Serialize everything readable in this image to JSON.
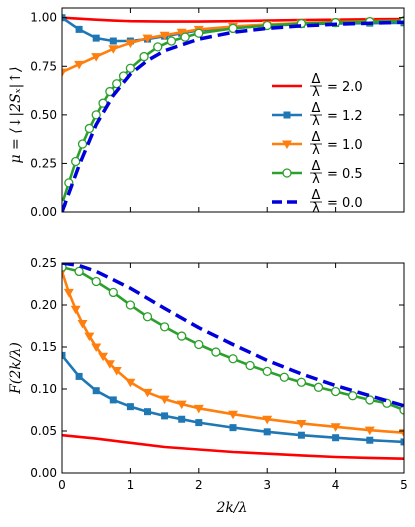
{
  "chart_data": [
    {
      "type": "line",
      "title": "",
      "ylabel": "μ = ⟨↓|2Sₓ|↑⟩",
      "xlabel": "",
      "xlim": [
        0,
        5
      ],
      "ylim": [
        0,
        1.05
      ],
      "x_ticks": [
        0,
        1,
        2,
        3,
        4,
        5
      ],
      "y_ticks": [
        0.0,
        0.25,
        0.5,
        0.75,
        1.0
      ],
      "y_tick_labels": [
        "0.00",
        "0.25",
        "0.50",
        "0.75",
        "1.00"
      ],
      "show_x_tick_labels": false,
      "grid": false,
      "legend": "center-right",
      "series": [
        {
          "name": "Δ/λ = 2.0",
          "legend_text": "= 2.0",
          "color": "#ff0000",
          "style": "solid",
          "marker": "none",
          "x": [
            0,
            0.25,
            0.5,
            0.75,
            1,
            1.5,
            2,
            2.5,
            3,
            3.5,
            4,
            4.5,
            5
          ],
          "values": [
            1.0,
            0.995,
            0.99,
            0.985,
            0.982,
            0.98,
            0.98,
            0.982,
            0.985,
            0.988,
            0.99,
            0.992,
            0.993
          ]
        },
        {
          "name": "Δ/λ = 1.2",
          "legend_text": "= 1.2",
          "color": "#1f77b4",
          "style": "solid",
          "marker": "square",
          "x": [
            0,
            0.25,
            0.5,
            0.75,
            1,
            1.25,
            1.5,
            1.75,
            2,
            2.5,
            3,
            3.5,
            4,
            4.5,
            5
          ],
          "values": [
            1.0,
            0.94,
            0.895,
            0.88,
            0.88,
            0.89,
            0.905,
            0.92,
            0.935,
            0.95,
            0.96,
            0.966,
            0.97,
            0.972,
            0.974
          ]
        },
        {
          "name": "Δ/λ = 1.0",
          "legend_text": "= 1.0",
          "color": "#ff7f0e",
          "style": "solid",
          "marker": "triangle-down",
          "x": [
            0,
            0.25,
            0.5,
            0.75,
            1,
            1.25,
            1.5,
            1.75,
            2,
            2.5,
            3,
            3.5,
            4,
            4.5,
            5
          ],
          "values": [
            0.72,
            0.76,
            0.8,
            0.84,
            0.87,
            0.895,
            0.91,
            0.925,
            0.94,
            0.955,
            0.965,
            0.972,
            0.978,
            0.982,
            0.985
          ]
        },
        {
          "name": "Δ/λ = 0.5",
          "legend_text": "= 0.5",
          "color": "#2ca02c",
          "style": "solid",
          "marker": "circle-open",
          "x": [
            0,
            0.1,
            0.2,
            0.3,
            0.4,
            0.5,
            0.6,
            0.7,
            0.8,
            0.9,
            1,
            1.2,
            1.4,
            1.6,
            1.8,
            2,
            2.5,
            3,
            3.5,
            4,
            4.5,
            5
          ],
          "values": [
            0.04,
            0.15,
            0.26,
            0.35,
            0.43,
            0.5,
            0.56,
            0.62,
            0.66,
            0.7,
            0.74,
            0.8,
            0.85,
            0.88,
            0.9,
            0.92,
            0.945,
            0.96,
            0.97,
            0.975,
            0.98,
            0.984
          ]
        },
        {
          "name": "Δ/λ = 0.0",
          "legend_text": "= 0.0",
          "color": "#0000dd",
          "style": "dashed",
          "marker": "none",
          "x": [
            0,
            0.25,
            0.5,
            0.75,
            1,
            1.25,
            1.5,
            2,
            2.5,
            3,
            3.5,
            4,
            4.5,
            5
          ],
          "values": [
            0.0,
            0.24,
            0.45,
            0.6,
            0.71,
            0.78,
            0.83,
            0.89,
            0.925,
            0.945,
            0.958,
            0.966,
            0.972,
            0.977
          ]
        }
      ]
    },
    {
      "type": "line",
      "title": "",
      "ylabel": "F(2k/λ)",
      "xlabel": "2k/λ",
      "xlim": [
        0,
        5
      ],
      "ylim": [
        0,
        0.25
      ],
      "x_ticks": [
        0,
        1,
        2,
        3,
        4,
        5
      ],
      "y_ticks": [
        0.0,
        0.05,
        0.1,
        0.15,
        0.2,
        0.25
      ],
      "y_tick_labels": [
        "0.00",
        "0.05",
        "0.10",
        "0.15",
        "0.20",
        "0.25"
      ],
      "show_x_tick_labels": true,
      "grid": false,
      "series": [
        {
          "name": "Δ/λ = 2.0",
          "color": "#ff0000",
          "style": "solid",
          "marker": "none",
          "x": [
            0,
            0.5,
            1,
            1.5,
            2,
            2.5,
            3,
            3.5,
            4,
            4.5,
            5
          ],
          "values": [
            0.045,
            0.041,
            0.036,
            0.031,
            0.028,
            0.025,
            0.023,
            0.021,
            0.019,
            0.018,
            0.017
          ]
        },
        {
          "name": "Δ/λ = 1.2",
          "color": "#1f77b4",
          "style": "solid",
          "marker": "square",
          "x": [
            0,
            0.25,
            0.5,
            0.75,
            1,
            1.25,
            1.5,
            1.75,
            2,
            2.5,
            3,
            3.5,
            4,
            4.5,
            5
          ],
          "values": [
            0.14,
            0.115,
            0.098,
            0.087,
            0.079,
            0.073,
            0.068,
            0.064,
            0.06,
            0.054,
            0.049,
            0.045,
            0.042,
            0.039,
            0.037
          ]
        },
        {
          "name": "Δ/λ = 1.0",
          "color": "#ff7f0e",
          "style": "solid",
          "marker": "triangle-down",
          "x": [
            0,
            0.1,
            0.2,
            0.3,
            0.4,
            0.5,
            0.6,
            0.7,
            0.8,
            1,
            1.25,
            1.5,
            1.75,
            2,
            2.5,
            3,
            3.5,
            4,
            4.5,
            5
          ],
          "values": [
            0.24,
            0.215,
            0.195,
            0.178,
            0.163,
            0.15,
            0.139,
            0.13,
            0.122,
            0.108,
            0.096,
            0.088,
            0.082,
            0.077,
            0.07,
            0.064,
            0.059,
            0.055,
            0.051,
            0.048
          ]
        },
        {
          "name": "Δ/λ = 0.5",
          "color": "#2ca02c",
          "style": "solid",
          "marker": "circle-open",
          "x": [
            0,
            0.25,
            0.5,
            0.75,
            1,
            1.25,
            1.5,
            1.75,
            2,
            2.25,
            2.5,
            2.75,
            3,
            3.25,
            3.5,
            3.75,
            4,
            4.25,
            4.5,
            4.75,
            5
          ],
          "values": [
            0.245,
            0.24,
            0.228,
            0.215,
            0.2,
            0.186,
            0.174,
            0.163,
            0.153,
            0.144,
            0.136,
            0.128,
            0.121,
            0.114,
            0.108,
            0.102,
            0.097,
            0.092,
            0.087,
            0.083,
            0.075
          ]
        },
        {
          "name": "Δ/λ = 0.0",
          "color": "#0000dd",
          "style": "dashed",
          "marker": "none",
          "x": [
            0,
            0.25,
            0.5,
            1,
            1.5,
            2,
            2.5,
            3,
            3.5,
            4,
            4.5,
            5
          ],
          "values": [
            0.25,
            0.247,
            0.24,
            0.22,
            0.196,
            0.173,
            0.153,
            0.134,
            0.118,
            0.104,
            0.092,
            0.08
          ]
        }
      ]
    }
  ]
}
